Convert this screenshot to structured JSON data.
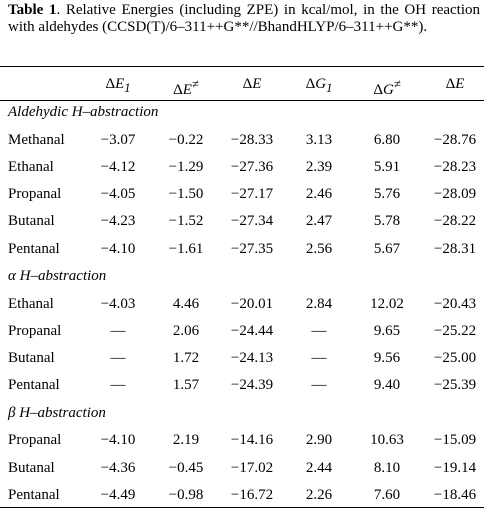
{
  "caption": {
    "label": "Table 1",
    "text": ". Relative Energies (including ZPE) in kcal/mol, in the OH reaction with aldehydes (CCSD(T)/6–311++G**//BhandHLYP/6–311++G**)."
  },
  "table": {
    "columns": [
      {
        "d": "Δ",
        "v": "E",
        "sub": "1"
      },
      {
        "d": "Δ",
        "v": "E",
        "sup": "≠"
      },
      {
        "d": "Δ",
        "v": "E"
      },
      {
        "d": "Δ",
        "v": "G",
        "sub": "1"
      },
      {
        "d": "Δ",
        "v": "G",
        "sup": "≠"
      },
      {
        "d": "Δ",
        "v": "E"
      }
    ],
    "sections": [
      {
        "title": "Aldehydic H–abstraction",
        "rows": [
          [
            "Methanal",
            "−3.07",
            "−0.22",
            "−28.33",
            "3.13",
            "6.80",
            "−28.76"
          ],
          [
            "Ethanal",
            "−4.12",
            "−1.29",
            "−27.36",
            "2.39",
            "5.91",
            "−28.23"
          ],
          [
            "Propanal",
            "−4.05",
            "−1.50",
            "−27.17",
            "2.46",
            "5.76",
            "−28.09"
          ],
          [
            "Butanal",
            "−4.23",
            "−1.52",
            "−27.34",
            "2.47",
            "5.78",
            "−28.22"
          ],
          [
            "Pentanal",
            "−4.10",
            "−1.61",
            "−27.35",
            "2.56",
            "5.67",
            "−28.31"
          ]
        ]
      },
      {
        "title": "α H–abstraction",
        "rows": [
          [
            "Ethanal",
            "−4.03",
            "4.46",
            "−20.01",
            "2.84",
            "12.02",
            "−20.43"
          ],
          [
            "Propanal",
            "—",
            "2.06",
            "−24.44",
            "—",
            "9.65",
            "−25.22"
          ],
          [
            "Butanal",
            "—",
            "1.72",
            "−24.13",
            "—",
            "9.56",
            "−25.00"
          ],
          [
            "Pentanal",
            "—",
            "1.57",
            "−24.39",
            "—",
            "9.40",
            "−25.39"
          ]
        ]
      },
      {
        "title": "β H–abstraction",
        "rows": [
          [
            "Propanal",
            "−4.10",
            "2.19",
            "−14.16",
            "2.90",
            "10.63",
            "−15.09"
          ],
          [
            "Butanal",
            "−4.36",
            "−0.45",
            "−17.02",
            "2.44",
            "8.10",
            "−19.14"
          ],
          [
            "Pentanal",
            "−4.49",
            "−0.98",
            "−16.72",
            "2.26",
            "7.60",
            "−18.46"
          ]
        ]
      }
    ]
  }
}
